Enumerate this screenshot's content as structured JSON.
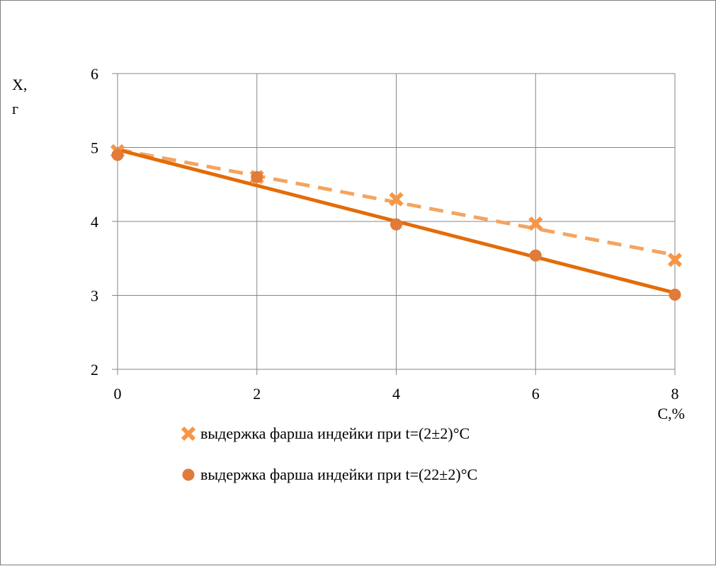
{
  "chart_data": {
    "type": "line",
    "ylabel_lines": [
      "X,",
      "г"
    ],
    "xlabel": "C,%",
    "xlim": [
      0,
      8
    ],
    "ylim": [
      2,
      6
    ],
    "x_ticks": [
      0,
      2,
      4,
      6,
      8
    ],
    "y_ticks": [
      2,
      3,
      4,
      5,
      6
    ],
    "grid": true,
    "legend_position": "bottom-center",
    "series": [
      {
        "name": "выдержка фарша индейки при t=(2±2)°С",
        "marker": "x",
        "line_style": "dashed",
        "color": "#f4a460",
        "marker_color": "#f79646",
        "x": [
          0,
          2,
          4,
          6,
          8
        ],
        "values": [
          4.95,
          4.6,
          4.3,
          3.97,
          3.48
        ]
      },
      {
        "name": "выдержка фарша индейки при t=(22±2)°С",
        "marker": "circle",
        "line_style": "solid",
        "color": "#e36c09",
        "marker_color": "#e07b39",
        "x": [
          0,
          2,
          4,
          6,
          8
        ],
        "values": [
          4.9,
          4.6,
          3.96,
          3.54,
          3.01
        ]
      }
    ]
  }
}
